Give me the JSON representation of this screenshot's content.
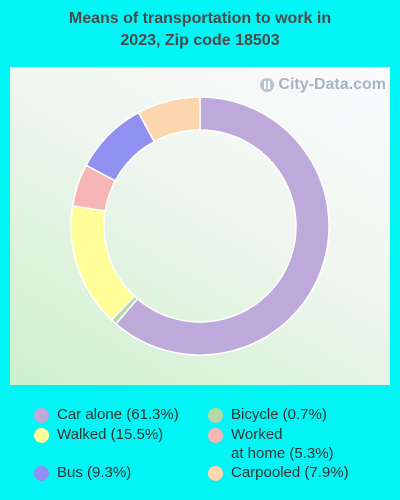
{
  "chart_data": {
    "type": "pie",
    "title_lines": [
      "Means of transportation to work in",
      "2023, Zip code 18503"
    ],
    "series": [
      {
        "name": "Car alone",
        "value": 61.3,
        "label": "Car alone (61.3%)",
        "color": "#bda9da"
      },
      {
        "name": "Bicycle",
        "value": 0.7,
        "label": "Bicycle (0.7%)",
        "color": "#b7d7a8"
      },
      {
        "name": "Walked",
        "value": 15.5,
        "label": "Walked (15.5%)",
        "color": "#fffe99"
      },
      {
        "name": "Worked at home",
        "value": 5.3,
        "label": "Worked\nat home (5.3%)",
        "color": "#f7b5b6"
      },
      {
        "name": "Bus",
        "value": 9.3,
        "label": "Bus (9.3%)",
        "color": "#9090f0"
      },
      {
        "name": "Carpooled",
        "value": 7.9,
        "label": "Carpooled (7.9%)",
        "color": "#fed6ae"
      }
    ],
    "legend_placement": "bottom"
  },
  "watermark": "City-Data.com",
  "watermark_icon": "city-data-logo-icon"
}
